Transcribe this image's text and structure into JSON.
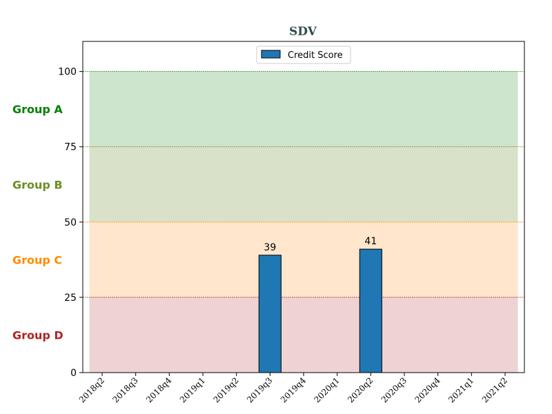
{
  "chart_data": {
    "type": "bar",
    "title": "SDV",
    "title_color": "#2f4f4f",
    "xlabel": "",
    "ylabel": "",
    "ylim": [
      0,
      110
    ],
    "yticks": [
      0,
      25,
      50,
      75,
      100
    ],
    "categories": [
      "2018q2",
      "2018q3",
      "2018q4",
      "2019q1",
      "2019q2",
      "2019q3",
      "2019q4",
      "2020q1",
      "2020q2",
      "2020q3",
      "2020q4",
      "2021q1",
      "2021q2"
    ],
    "series": [
      {
        "name": "Credit Score",
        "color": "#1f77b4",
        "values": [
          null,
          null,
          null,
          null,
          null,
          39,
          null,
          null,
          41,
          null,
          null,
          null,
          null
        ]
      }
    ],
    "bands": [
      {
        "label": "Group A",
        "from": 75,
        "to": 100,
        "fill": "#cce5cc",
        "line_color": "#2e8b2e",
        "label_color": "#008000"
      },
      {
        "label": "Group B",
        "from": 50,
        "to": 75,
        "fill": "#d9e2c8",
        "line_color": "#8a7a1a",
        "label_color": "#6b8e23"
      },
      {
        "label": "Group C",
        "from": 25,
        "to": 50,
        "fill": "#ffe6cc",
        "line_color": "#ff8c00",
        "label_color": "#ff8c00"
      },
      {
        "label": "Group D",
        "from": 0,
        "to": 25,
        "fill": "#eed3d3",
        "line_color": "#b22222",
        "label_color": "#b22222"
      }
    ],
    "legend": {
      "position": "top-center",
      "entries": [
        "Credit Score"
      ]
    },
    "grid": false
  }
}
